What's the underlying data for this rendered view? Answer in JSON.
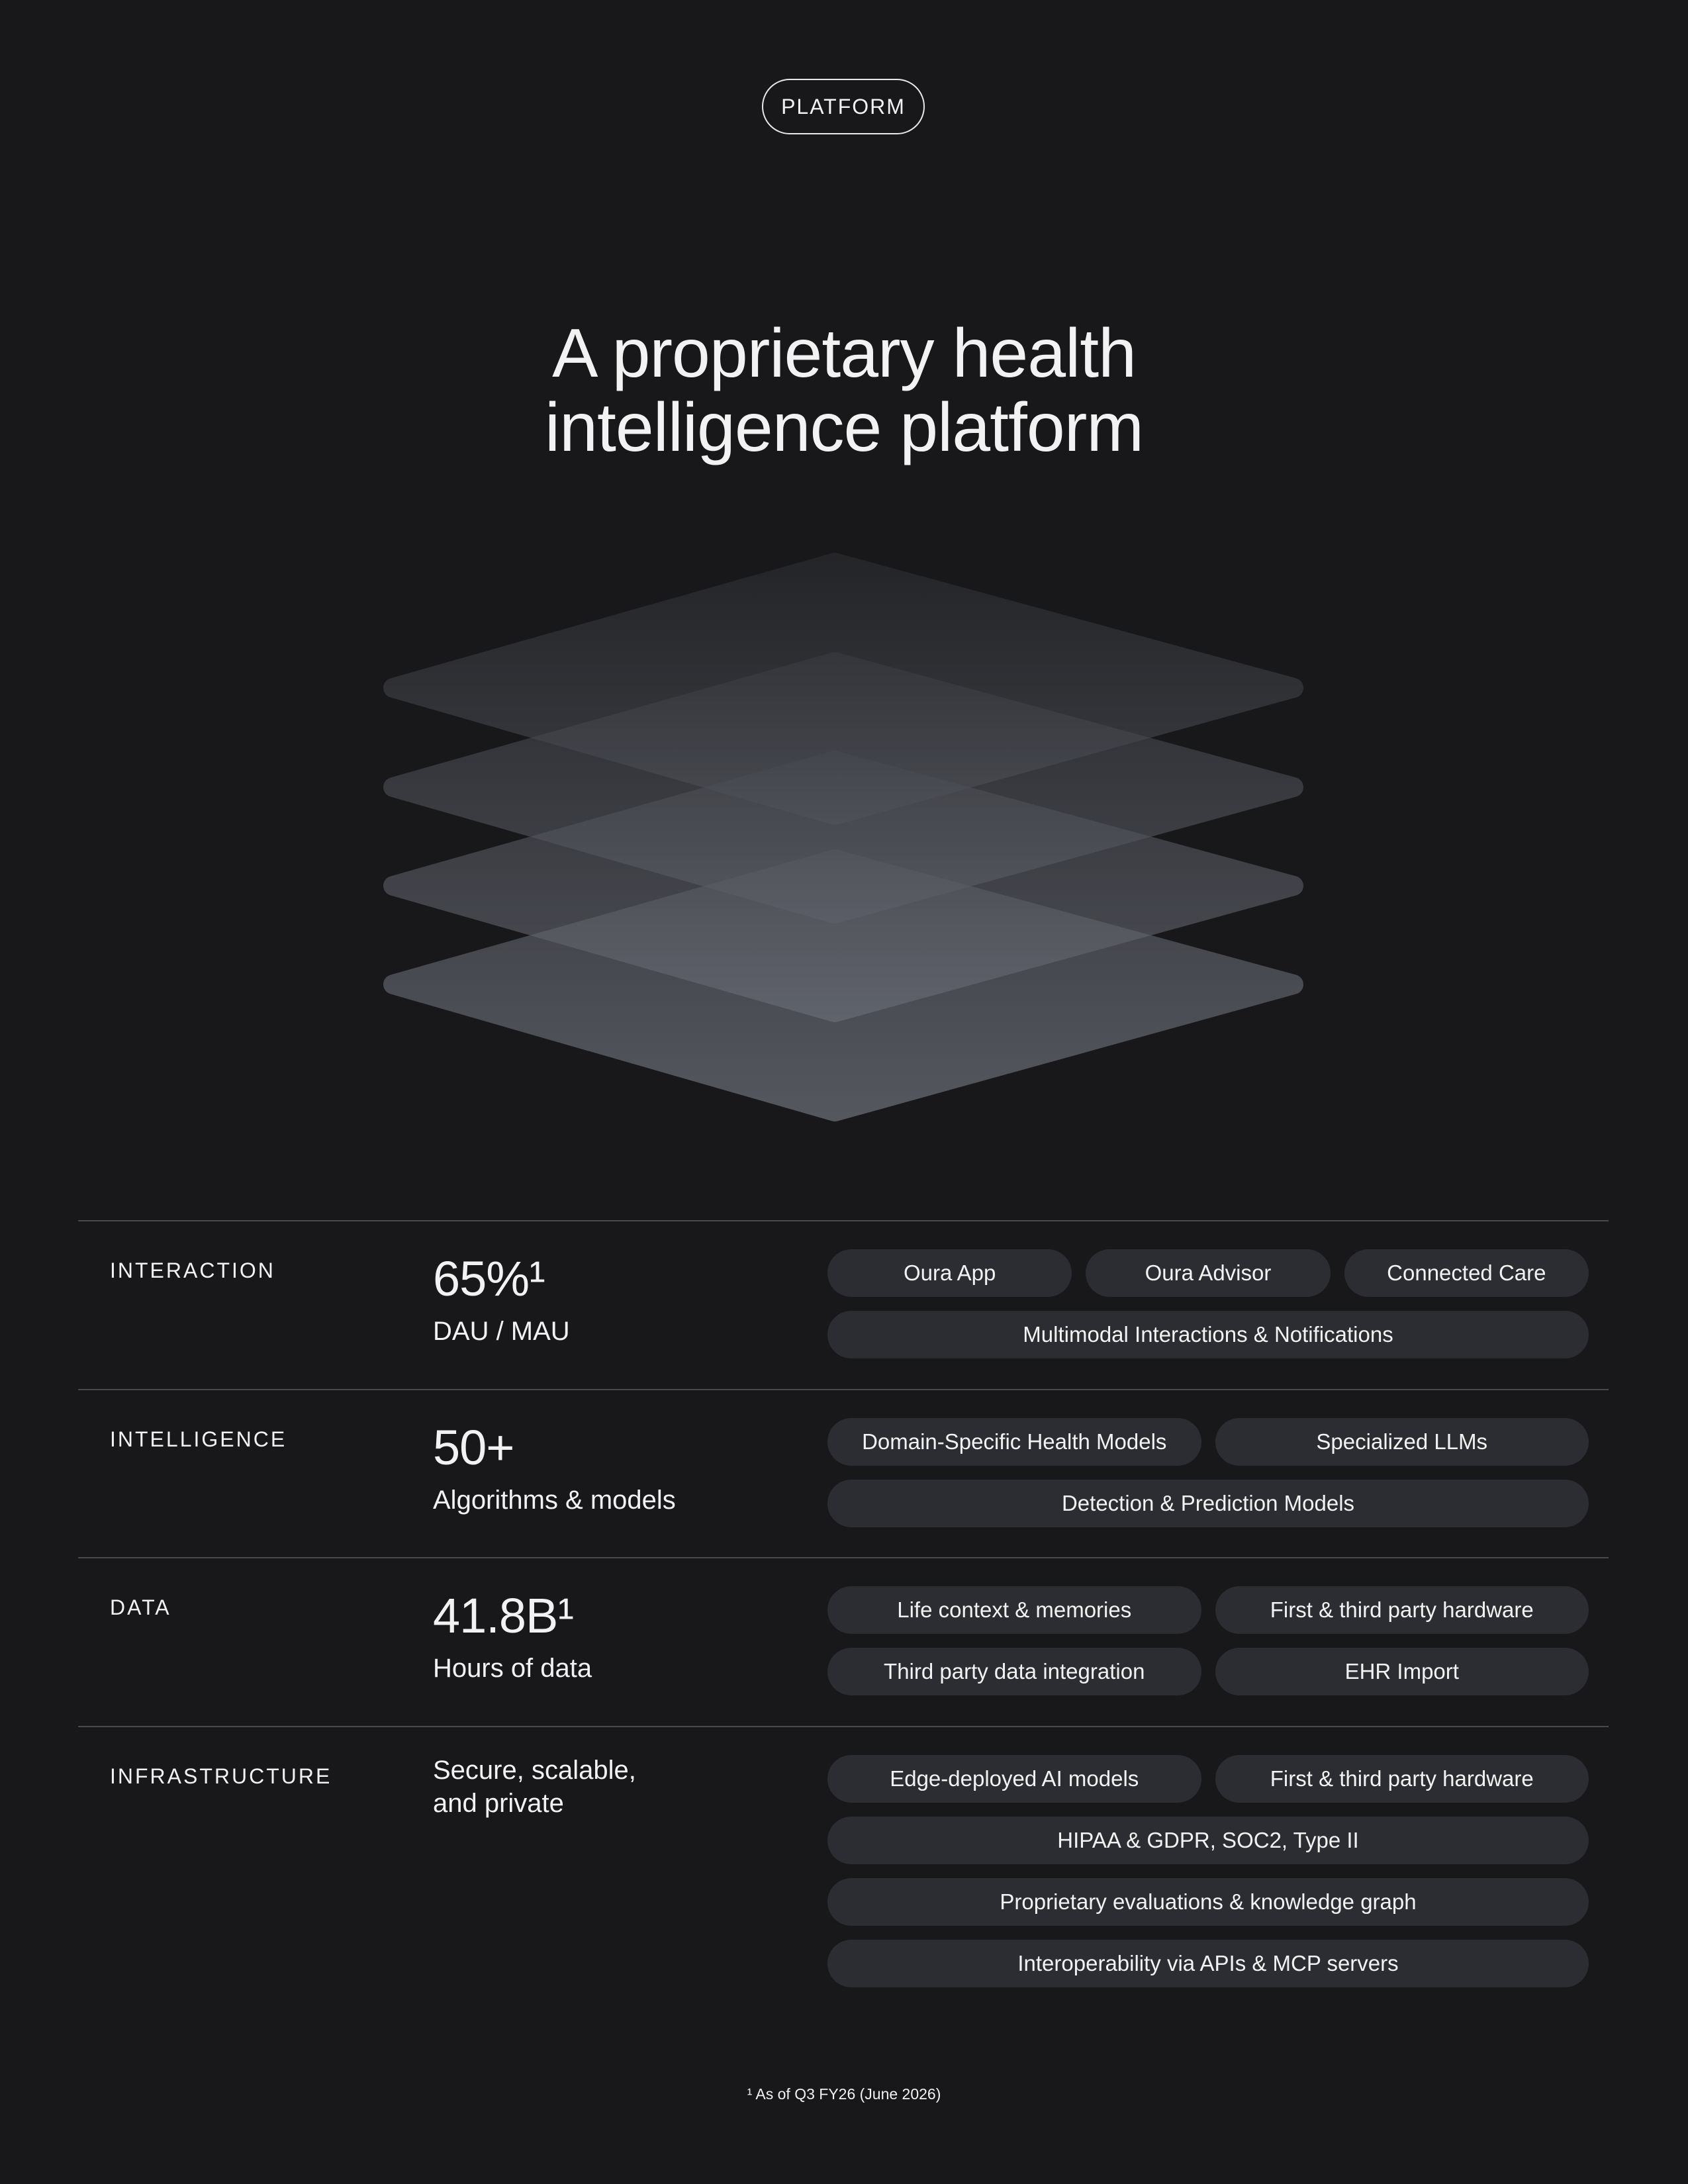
{
  "badge": "PLATFORM",
  "title_lines": [
    "A proprietary health",
    "intelligence platform"
  ],
  "sections": [
    {
      "label": "INTERACTION",
      "stat": "65%¹",
      "caption": "DAU / MAU",
      "pills": [
        [
          "Oura App",
          "Oura Advisor",
          "Connected Care"
        ],
        [
          "Multimodal Interactions & Notifications"
        ]
      ]
    },
    {
      "label": "INTELLIGENCE",
      "stat": "50+",
      "caption": "Algorithms & models",
      "pills": [
        [
          "Domain-Specific Health Models",
          "Specialized LLMs"
        ],
        [
          "Detection & Prediction Models"
        ]
      ]
    },
    {
      "label": "DATA",
      "stat": "41.8B¹",
      "caption": "Hours of data",
      "pills": [
        [
          "Life context & memories",
          "First & third party hardware"
        ],
        [
          "Third party data integration",
          "EHR Import"
        ]
      ]
    },
    {
      "label": "INFRASTRUCTURE",
      "description_lines": [
        "Secure, scalable,",
        "and private"
      ],
      "pills": [
        [
          "Edge-deployed AI models",
          "First & third party hardware"
        ],
        [
          "HIPAA & GDPR, SOC2, Type II"
        ],
        [
          "Proprietary evaluations & knowledge graph"
        ],
        [
          "Interoperability via APIs & MCP servers"
        ]
      ]
    }
  ],
  "footnote": "¹ As of Q3 FY26 (June 2026)"
}
